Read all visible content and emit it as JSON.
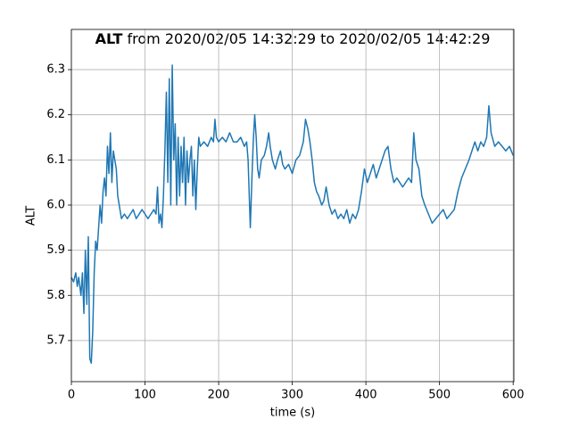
{
  "chart_data": {
    "type": "line",
    "title_bold": "ALT",
    "title": "from 2020/02/05 14:32:29 to 2020/02/05 14:42:29",
    "xlabel": "time (s)",
    "ylabel": "ALT",
    "color": "#1f77b4",
    "grid": true,
    "xlim": [
      0,
      601
    ],
    "ylim": [
      5.609,
      6.389
    ],
    "xticks": [
      0,
      100,
      200,
      300,
      400,
      500,
      600
    ],
    "yticks": [
      5.7,
      5.8,
      5.9,
      {
        "value": 6,
        "label": "6.0"
      },
      6.1,
      6.2,
      6.3
    ],
    "x": [
      0,
      3,
      6,
      8,
      10,
      13,
      15,
      17,
      19,
      21,
      23,
      25,
      27,
      29,
      31,
      33,
      35,
      37,
      39,
      41,
      43,
      45,
      47,
      49,
      51,
      53,
      55,
      57,
      59,
      61,
      63,
      65,
      68,
      72,
      76,
      80,
      84,
      88,
      92,
      96,
      100,
      104,
      108,
      112,
      115,
      117,
      119,
      121,
      123,
      125,
      127,
      129,
      131,
      133,
      135,
      137,
      139,
      141,
      143,
      145,
      147,
      149,
      151,
      153,
      155,
      157,
      159,
      161,
      163,
      165,
      167,
      169,
      171,
      173,
      175,
      180,
      185,
      190,
      193,
      195,
      197,
      200,
      205,
      210,
      215,
      220,
      225,
      230,
      235,
      238,
      240,
      242,
      243,
      245,
      247,
      249,
      251,
      253,
      255,
      258,
      262,
      265,
      268,
      270,
      273,
      277,
      280,
      284,
      287,
      290,
      295,
      300,
      305,
      310,
      315,
      318,
      321,
      324,
      327,
      330,
      333,
      336,
      340,
      343,
      346,
      350,
      354,
      358,
      362,
      366,
      370,
      374,
      378,
      382,
      386,
      390,
      394,
      398,
      402,
      406,
      410,
      414,
      418,
      422,
      426,
      430,
      434,
      438,
      442,
      446,
      450,
      454,
      458,
      462,
      465,
      468,
      472,
      476,
      480,
      485,
      490,
      495,
      500,
      505,
      510,
      515,
      520,
      525,
      530,
      535,
      540,
      544,
      548,
      552,
      556,
      560,
      564,
      567,
      570,
      575,
      580,
      585,
      590,
      595,
      600
    ],
    "values": [
      5.84,
      5.83,
      5.85,
      5.82,
      5.84,
      5.8,
      5.85,
      5.76,
      5.9,
      5.78,
      5.93,
      5.66,
      5.65,
      5.72,
      5.85,
      5.92,
      5.9,
      5.95,
      6.0,
      5.96,
      6.03,
      6.06,
      6.02,
      6.13,
      6.07,
      6.16,
      6.05,
      6.12,
      6.1,
      6.08,
      6.02,
      6.0,
      5.97,
      5.98,
      5.97,
      5.98,
      5.99,
      5.97,
      5.98,
      5.99,
      5.98,
      5.97,
      5.98,
      5.99,
      5.98,
      6.04,
      5.96,
      5.98,
      5.95,
      6.02,
      6.12,
      6.25,
      6.05,
      6.28,
      6.0,
      6.31,
      6.1,
      6.18,
      6.0,
      6.15,
      6.02,
      6.13,
      6.05,
      6.15,
      6.0,
      6.12,
      6.05,
      6.1,
      6.13,
      6.02,
      6.1,
      5.99,
      6.08,
      6.15,
      6.13,
      6.14,
      6.13,
      6.15,
      6.14,
      6.19,
      6.15,
      6.14,
      6.15,
      6.14,
      6.16,
      6.14,
      6.14,
      6.15,
      6.13,
      6.14,
      6.1,
      6.0,
      5.95,
      6.05,
      6.14,
      6.2,
      6.15,
      6.08,
      6.06,
      6.1,
      6.11,
      6.13,
      6.16,
      6.13,
      6.1,
      6.08,
      6.1,
      6.12,
      6.09,
      6.08,
      6.09,
      6.07,
      6.1,
      6.11,
      6.14,
      6.19,
      6.17,
      6.14,
      6.1,
      6.05,
      6.03,
      6.02,
      6.0,
      6.01,
      6.04,
      6.0,
      5.98,
      5.99,
      5.97,
      5.98,
      5.97,
      5.99,
      5.96,
      5.98,
      5.97,
      5.99,
      6.03,
      6.08,
      6.05,
      6.07,
      6.09,
      6.06,
      6.08,
      6.1,
      6.12,
      6.13,
      6.08,
      6.05,
      6.06,
      6.05,
      6.04,
      6.05,
      6.06,
      6.05,
      6.16,
      6.1,
      6.08,
      6.02,
      6.0,
      5.98,
      5.96,
      5.97,
      5.98,
      5.99,
      5.97,
      5.98,
      5.99,
      6.03,
      6.06,
      6.08,
      6.1,
      6.12,
      6.14,
      6.12,
      6.14,
      6.13,
      6.15,
      6.22,
      6.16,
      6.13,
      6.14,
      6.13,
      6.12,
      6.13,
      6.11
    ]
  }
}
